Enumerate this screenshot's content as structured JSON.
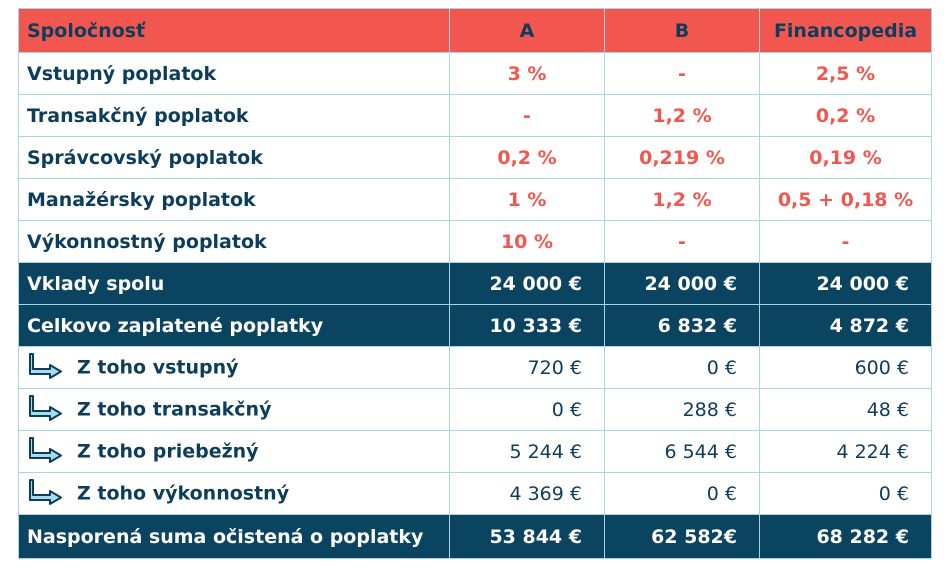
{
  "header": {
    "company": "Spoločnosť",
    "a": "A",
    "b": "B",
    "fin": "Financopedia"
  },
  "fees": [
    {
      "label": "Vstupný poplatok",
      "a": "3 %",
      "b": "-",
      "fin": "2,5 %"
    },
    {
      "label": "Transakčný poplatok",
      "a": "-",
      "b": "1,2 %",
      "fin": "0,2 %"
    },
    {
      "label": "Správcovský poplatok",
      "a": "0,2 %",
      "b": "0,219 %",
      "fin": "0,19 %"
    },
    {
      "label": "Manažérsky poplatok",
      "a": "1 %",
      "b": "1,2 %",
      "fin": "0,5 + 0,18 %"
    },
    {
      "label": "Výkonnostný poplatok",
      "a": "10 %",
      "b": "-",
      "fin": "-"
    }
  ],
  "deposits": {
    "label": "Vklady spolu",
    "a": "24 000 €",
    "b": "24 000 €",
    "fin": "24 000 €"
  },
  "total_fees": {
    "label": "Celkovo zaplatené poplatky",
    "a": "10 333 €",
    "b": "6 832 €",
    "fin": "4 872 €"
  },
  "breakdown": [
    {
      "label": "Z toho vstupný",
      "a": "720 €",
      "b": "0 €",
      "fin": "600 €"
    },
    {
      "label": "Z toho transakčný",
      "a": "0 €",
      "b": "288 €",
      "fin": "48 €"
    },
    {
      "label": "Z toho priebežný",
      "a": "5 244 €",
      "b": "6 544 €",
      "fin": "4 224 €"
    },
    {
      "label": "Z toho výkonnostný",
      "a": "4 369 €",
      "b": "0 €",
      "fin": "0 €"
    }
  ],
  "savings": {
    "label": "Nasporená suma očistená o poplatky",
    "a": "53 844 €",
    "b": "62 582€",
    "fin": "68 282 €"
  },
  "colors": {
    "header_bg": "#f2574f",
    "dark_bg": "#0b4461",
    "text_dark": "#0d3d5c",
    "accent_red": "#f2574f",
    "border": "#a9d6e2"
  }
}
